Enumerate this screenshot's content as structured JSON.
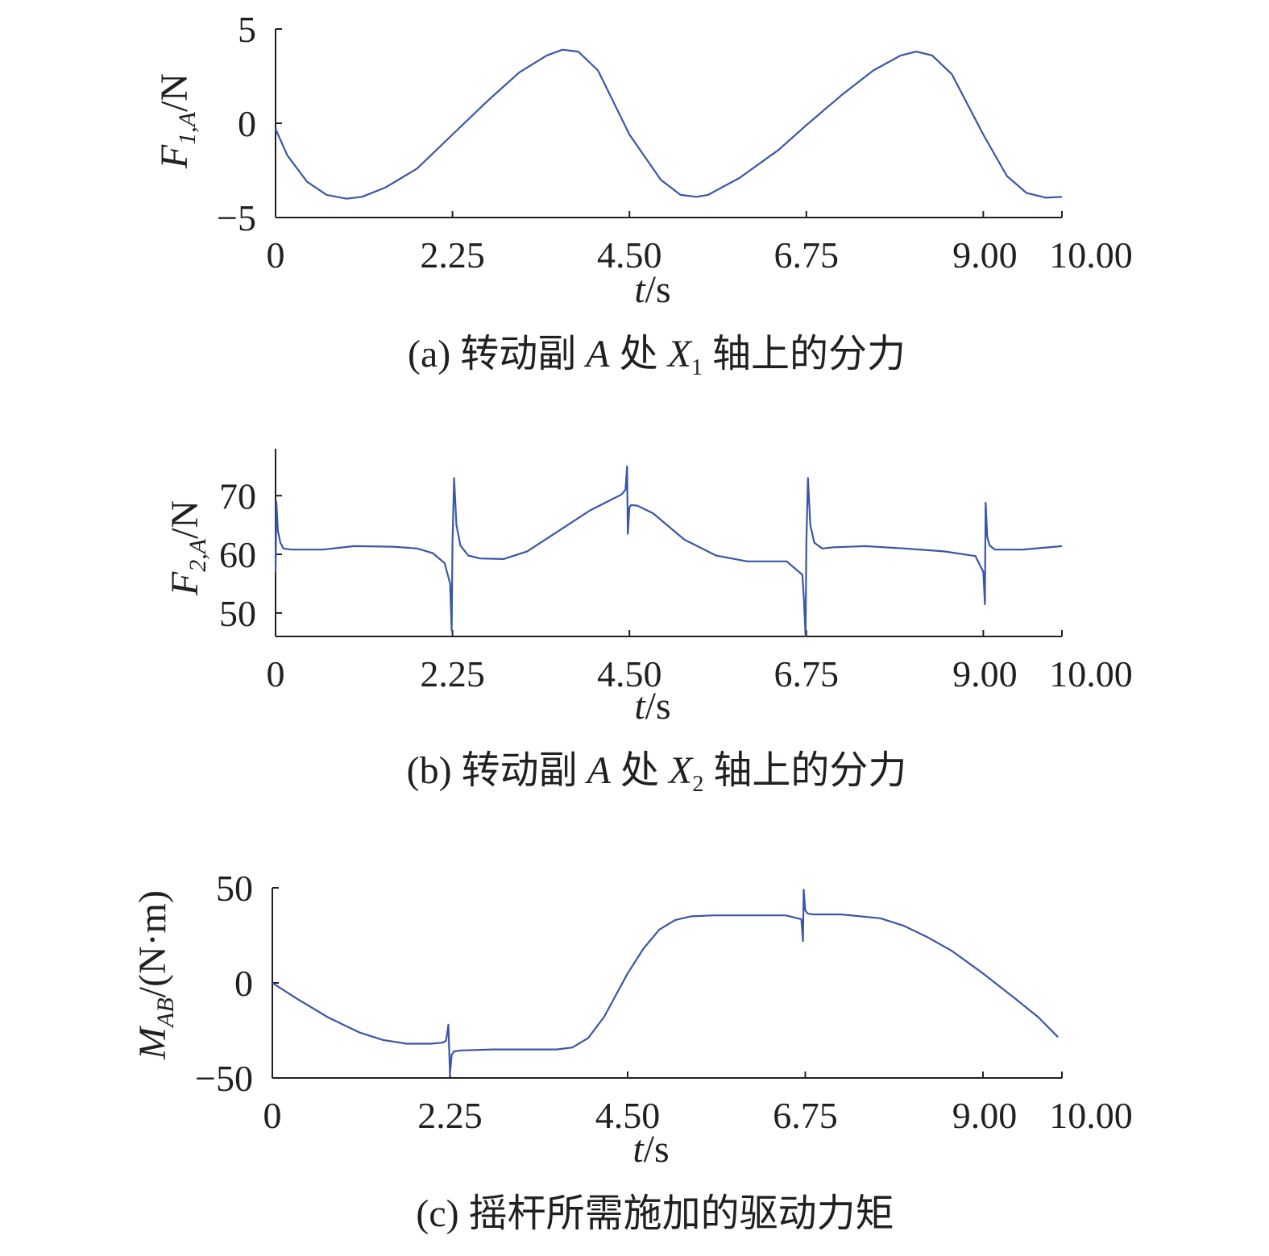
{
  "chart_data": [
    {
      "type": "line",
      "caption": "(a) 转动副 A 处 X1 轴上的分力",
      "caption_parts": {
        "prefix": "(a) 转动副 ",
        "var1": "A",
        "mid": " 处 ",
        "var2": "X",
        "sub": "1",
        "suffix": " 轴上的分力"
      },
      "ylabel": {
        "main": "F",
        "sub": "1,A",
        "unit": "/N"
      },
      "xlabel": {
        "main": "t",
        "unit": "/s"
      },
      "xlim": [
        0,
        10
      ],
      "ylim": [
        -5,
        5
      ],
      "xticks": [
        0,
        2.25,
        4.5,
        6.75,
        9.0,
        10.0
      ],
      "xtick_labels": [
        "0",
        "2.25",
        "4.50",
        "6.75",
        "9.00",
        "10.00"
      ],
      "yticks": [
        -5,
        0,
        5
      ],
      "ytick_labels": [
        "−5",
        "0",
        "5"
      ],
      "color": "#3a56a6",
      "series": [
        {
          "x": [
            0,
            0.15,
            0.4,
            0.65,
            0.9,
            1.1,
            1.4,
            1.8,
            2.25,
            2.7,
            3.1,
            3.45,
            3.65,
            3.85,
            4.1,
            4.5,
            4.9,
            5.15,
            5.35,
            5.5,
            5.9,
            6.4,
            6.75,
            7.2,
            7.6,
            7.95,
            8.15,
            8.35,
            8.6,
            9.0,
            9.3,
            9.55,
            9.8,
            10.0
          ],
          "y": [
            -0.3,
            -1.7,
            -3.1,
            -3.8,
            -4.0,
            -3.9,
            -3.4,
            -2.4,
            -0.6,
            1.2,
            2.7,
            3.6,
            3.9,
            3.8,
            2.8,
            -0.6,
            -3.0,
            -3.8,
            -3.9,
            -3.8,
            -2.9,
            -1.4,
            -0.1,
            1.5,
            2.8,
            3.6,
            3.8,
            3.6,
            2.6,
            -0.6,
            -2.8,
            -3.7,
            -3.95,
            -3.9
          ]
        }
      ]
    },
    {
      "type": "line",
      "caption": "(b) 转动副 A 处 X2 轴上的分力",
      "caption_parts": {
        "prefix": "(b) 转动副 ",
        "var1": "A",
        "mid": " 处 ",
        "var2": "X",
        "sub": "2",
        "suffix": " 轴上的分力"
      },
      "ylabel": {
        "main": "F",
        "sub": "2,A",
        "unit": "/N"
      },
      "xlabel": {
        "main": "t",
        "unit": "/s"
      },
      "xlim": [
        0,
        10
      ],
      "ylim": [
        46,
        78
      ],
      "xticks": [
        0,
        2.25,
        4.5,
        6.75,
        9.0,
        10.0
      ],
      "xtick_labels": [
        "0",
        "2.25",
        "4.50",
        "6.75",
        "9.00",
        "10.00"
      ],
      "yticks": [
        50,
        60,
        70
      ],
      "ytick_labels": [
        "50",
        "60",
        "70"
      ],
      "color": "#3a56a6",
      "series": [
        {
          "x": [
            0,
            0.01,
            0.03,
            0.06,
            0.1,
            0.2,
            0.6,
            1.0,
            1.5,
            1.8,
            2.0,
            2.15,
            2.22,
            2.24,
            2.25,
            2.27,
            2.3,
            2.35,
            2.45,
            2.6,
            2.9,
            3.2,
            3.6,
            4.0,
            4.4,
            4.45,
            4.47,
            4.48,
            4.5,
            4.52,
            4.6,
            4.8,
            5.2,
            5.6,
            6.0,
            6.5,
            6.7,
            6.72,
            6.74,
            6.75,
            6.77,
            6.8,
            6.85,
            6.95,
            7.1,
            7.5,
            8.0,
            8.5,
            8.9,
            9.0,
            9.02,
            9.03,
            9.05,
            9.08,
            9.15,
            9.5,
            10.0
          ],
          "y": [
            57,
            69,
            64,
            62,
            61,
            60.8,
            60.8,
            61.4,
            61.3,
            61.0,
            60.2,
            58.5,
            55.0,
            47.0,
            62.0,
            73.0,
            65.0,
            61.5,
            59.8,
            59.3,
            59.2,
            60.5,
            64.0,
            67.5,
            70.2,
            71.0,
            75.0,
            63.5,
            68.0,
            68.4,
            68.3,
            67.0,
            62.5,
            59.8,
            58.8,
            58.8,
            56.5,
            52.0,
            46.0,
            62.0,
            73.0,
            65.0,
            62.0,
            61.0,
            61.2,
            61.4,
            61.0,
            60.5,
            59.7,
            57.0,
            51.5,
            68.8,
            63.0,
            61.5,
            60.8,
            60.8,
            61.4
          ]
        }
      ]
    },
    {
      "type": "line",
      "caption": "(c) 摇杆所需施加的驱动力矩",
      "caption_parts": {
        "prefix": "(c) 摇杆所需施加的驱动力矩"
      },
      "ylabel": {
        "main": "M",
        "sub": "AB",
        "unit": "/(N·m)"
      },
      "xlabel": {
        "main": "t",
        "unit": "/s"
      },
      "xlim": [
        0,
        10
      ],
      "ylim": [
        -50,
        50
      ],
      "xticks": [
        0,
        2.25,
        4.5,
        6.75,
        9.0,
        10.0
      ],
      "xtick_labels": [
        "0",
        "2.25",
        "4.50",
        "6.75",
        "9.00",
        "10.00"
      ],
      "yticks": [
        -50,
        0,
        50
      ],
      "ytick_labels": [
        "−50",
        "0",
        "50"
      ],
      "color": "#3a56a6",
      "series": [
        {
          "x": [
            0,
            0.3,
            0.7,
            1.1,
            1.4,
            1.7,
            2.0,
            2.15,
            2.2,
            2.23,
            2.25,
            2.27,
            2.3,
            2.4,
            2.8,
            3.2,
            3.6,
            3.8,
            4.0,
            4.2,
            4.5,
            4.7,
            4.9,
            5.1,
            5.3,
            5.6,
            6.0,
            6.5,
            6.7,
            6.72,
            6.73,
            6.75,
            6.78,
            6.85,
            7.2,
            7.7,
            8.0,
            8.3,
            8.6,
            9.0,
            9.4,
            9.7,
            9.95
          ],
          "y": [
            0,
            -8,
            -18,
            -26,
            -30,
            -32,
            -32,
            -31.5,
            -30.5,
            -22,
            -48,
            -38,
            -36,
            -35.5,
            -35,
            -35,
            -35,
            -34,
            -29,
            -18,
            5,
            18,
            28,
            33,
            35,
            35.5,
            35.5,
            35.5,
            33.5,
            22,
            49,
            38,
            36.5,
            36,
            36,
            34,
            30,
            24,
            17,
            5,
            -8,
            -18,
            -28.5
          ]
        }
      ]
    }
  ]
}
